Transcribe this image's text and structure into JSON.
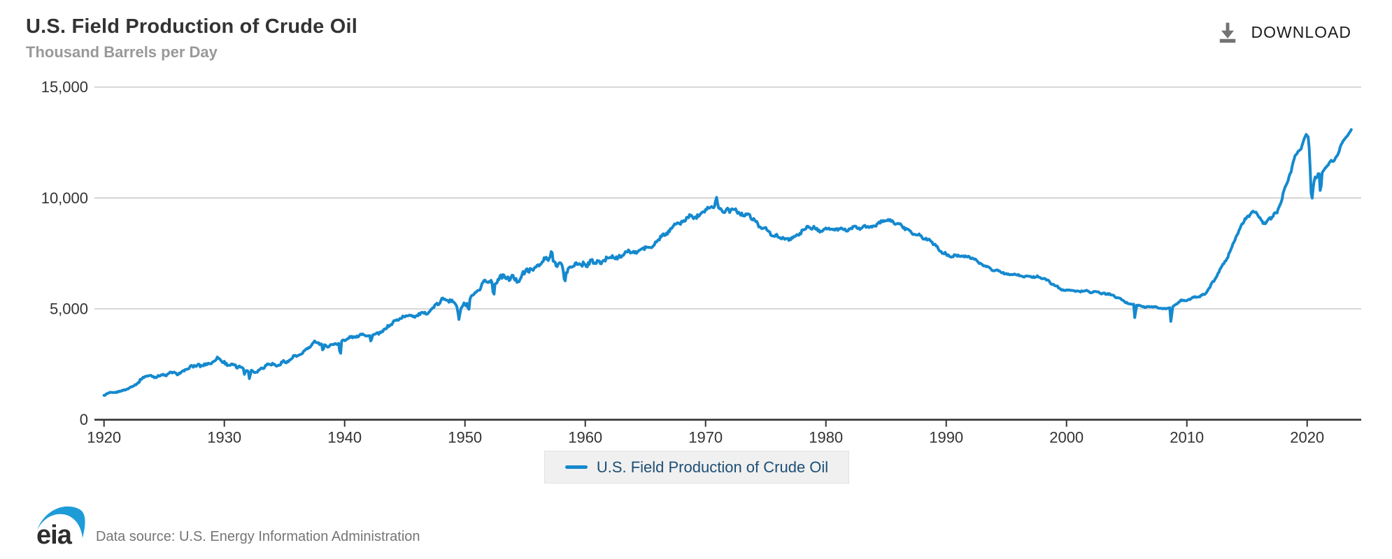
{
  "header": {
    "title": "U.S. Field Production of Crude Oil",
    "subtitle": "Thousand Barrels per Day",
    "download_label": "DOWNLOAD"
  },
  "footer": {
    "logo_text": "eia",
    "source_text": "Data source: U.S. Energy Information Administration"
  },
  "colors": {
    "line": "#1489ce",
    "grid": "#cbcbcb",
    "axis": "#333333",
    "tick_label": "#333333",
    "legend_text": "#1d4e74",
    "legend_bg": "#f0f0f0",
    "title": "#333333",
    "subtitle": "#999999",
    "source_text": "#757575",
    "download_icon": "#737373",
    "logo_swoosh": "#1e9cd7",
    "logo_text": "#2d2d2d"
  },
  "chart_data": {
    "type": "line",
    "title": "U.S. Field Production of Crude Oil",
    "ylabel": "Thousand Barrels per Day",
    "unit": "thousand barrels per day",
    "frequency": "monthly",
    "grid": "horizontal",
    "legend_position": "bottom-center",
    "ylim": [
      0,
      15000
    ],
    "yticks": [
      0,
      5000,
      10000,
      15000
    ],
    "ytick_labels": [
      "0",
      "5,000",
      "10,000",
      "15,000"
    ],
    "xticks": [
      1920,
      1930,
      1940,
      1950,
      1960,
      1970,
      1980,
      1990,
      2000,
      2010,
      2020
    ],
    "x_range": [
      1920.0,
      2023.67
    ],
    "series": [
      {
        "name": "U.S. Field Production of Crude Oil",
        "anchors": [
          [
            1920,
            1100
          ],
          [
            1920.5,
            1210
          ],
          [
            1921.5,
            1294
          ],
          [
            1922.5,
            1529
          ],
          [
            1923.5,
            2004
          ],
          [
            1924.5,
            1952
          ],
          [
            1925.5,
            2092
          ],
          [
            1926.5,
            2113
          ],
          [
            1927.5,
            2469
          ],
          [
            1928.5,
            2458
          ],
          [
            1929.5,
            2760
          ],
          [
            1930.5,
            2460
          ],
          [
            1931.5,
            2332
          ],
          [
            1932.5,
            2145
          ],
          [
            1933.5,
            2481
          ],
          [
            1934.5,
            2480
          ],
          [
            1935.5,
            2730
          ],
          [
            1936.5,
            3001
          ],
          [
            1937.5,
            3500
          ],
          [
            1938.5,
            3327
          ],
          [
            1939.5,
            3467
          ],
          [
            1940.5,
            3697
          ],
          [
            1941.5,
            3842
          ],
          [
            1942.5,
            3799
          ],
          [
            1943.5,
            4125
          ],
          [
            1944.5,
            4584
          ],
          [
            1945.5,
            4695
          ],
          [
            1946.5,
            4750
          ],
          [
            1947.5,
            5088
          ],
          [
            1948.5,
            5520
          ],
          [
            1949.5,
            5046
          ],
          [
            1950.5,
            5407
          ],
          [
            1951.5,
            6158
          ],
          [
            1952.5,
            6256
          ],
          [
            1953.5,
            6458
          ],
          [
            1954.5,
            6342
          ],
          [
            1955.5,
            6807
          ],
          [
            1956.5,
            7151
          ],
          [
            1957.5,
            7170
          ],
          [
            1958.5,
            6710
          ],
          [
            1959.5,
            7054
          ],
          [
            1960.5,
            7035
          ],
          [
            1961.5,
            7183
          ],
          [
            1962.5,
            7332
          ],
          [
            1963.5,
            7542
          ],
          [
            1964.5,
            7614
          ],
          [
            1965.5,
            7804
          ],
          [
            1966.5,
            8295
          ],
          [
            1967.5,
            8810
          ],
          [
            1968.5,
            9096
          ],
          [
            1969.5,
            9238
          ],
          [
            1970.5,
            9637
          ],
          [
            1971.5,
            9463
          ],
          [
            1972.5,
            9441
          ],
          [
            1973.5,
            9208
          ],
          [
            1974.5,
            8774
          ],
          [
            1975.5,
            8375
          ],
          [
            1976.5,
            8132
          ],
          [
            1977.5,
            8245
          ],
          [
            1978.5,
            8707
          ],
          [
            1979.5,
            8552
          ],
          [
            1980.5,
            8597
          ],
          [
            1981.5,
            8572
          ],
          [
            1982.5,
            8649
          ],
          [
            1983.5,
            8688
          ],
          [
            1984.5,
            8879
          ],
          [
            1985.5,
            8971
          ],
          [
            1986.5,
            8680
          ],
          [
            1987.5,
            8349
          ],
          [
            1988.5,
            8140
          ],
          [
            1989.5,
            7613
          ],
          [
            1990.5,
            7355
          ],
          [
            1991.5,
            7417
          ],
          [
            1992.5,
            7171
          ],
          [
            1993.5,
            6847
          ],
          [
            1994.5,
            6662
          ],
          [
            1995.5,
            6560
          ],
          [
            1996.5,
            6465
          ],
          [
            1997.5,
            6452
          ],
          [
            1998.5,
            6252
          ],
          [
            1999.5,
            5881
          ],
          [
            2000.5,
            5822
          ],
          [
            2001.5,
            5801
          ],
          [
            2002.5,
            5746
          ],
          [
            2003.5,
            5681
          ],
          [
            2004.5,
            5419
          ],
          [
            2005.5,
            5178
          ],
          [
            2006.5,
            5102
          ],
          [
            2007.5,
            5064
          ],
          [
            2008.5,
            5000
          ],
          [
            2009.5,
            5353
          ],
          [
            2010.5,
            5482
          ],
          [
            2011.5,
            5645
          ],
          [
            2012.5,
            6497
          ],
          [
            2013.5,
            7468
          ],
          [
            2014.5,
            8759
          ],
          [
            2015.5,
            9431
          ],
          [
            2016.5,
            8831
          ],
          [
            2017.5,
            9352
          ],
          [
            2018.5,
            10964
          ],
          [
            2019,
            11900
          ],
          [
            2019.25,
            12110
          ],
          [
            2019.5,
            12230
          ],
          [
            2019.75,
            12650
          ],
          [
            2019.92,
            12860
          ],
          [
            2020.1,
            12740
          ],
          [
            2020.2,
            12000
          ],
          [
            2020.37,
            9714
          ],
          [
            2020.5,
            10450
          ],
          [
            2020.63,
            10950
          ],
          [
            2020.8,
            10900
          ],
          [
            2020.95,
            11150
          ],
          [
            2021.1,
            11000
          ],
          [
            2021.3,
            11170
          ],
          [
            2021.5,
            11320
          ],
          [
            2021.75,
            11500
          ],
          [
            2021.95,
            11700
          ],
          [
            2022.2,
            11650
          ],
          [
            2022.4,
            11850
          ],
          [
            2022.6,
            12000
          ],
          [
            2022.8,
            12380
          ],
          [
            2023,
            12550
          ],
          [
            2023.2,
            12700
          ],
          [
            2023.4,
            12850
          ],
          [
            2023.67,
            13100
          ]
        ],
        "wiggle_eras": [
          {
            "until": 1924,
            "pct": 3.0
          },
          {
            "until": 1936,
            "pct": 4.0
          },
          {
            "until": 1948,
            "pct": 2.2
          },
          {
            "until": 1963,
            "pct": 3.0
          },
          {
            "until": 1975,
            "pct": 1.5
          },
          {
            "until": 1992,
            "pct": 1.2
          },
          {
            "until": 2012,
            "pct": 1.0
          },
          {
            "until": 2019,
            "pct": 1.1
          },
          {
            "until": 2026,
            "pct": 0.5
          }
        ],
        "events": [
          [
            1931.7,
            1900,
            0.05
          ],
          [
            1932.1,
            1830,
            0.07
          ],
          [
            1938.2,
            3080,
            0.07
          ],
          [
            1939.63,
            2630,
            0.05
          ],
          [
            1942.2,
            3420,
            0.05
          ],
          [
            1949.5,
            4520,
            0.1
          ],
          [
            1950.3,
            4820,
            0.06
          ],
          [
            1952.38,
            5110,
            0.045
          ],
          [
            1957.2,
            7610,
            0.1
          ],
          [
            1958.3,
            6180,
            0.08
          ],
          [
            1970.9,
            10044,
            0.09
          ],
          [
            2005.7,
            4197,
            0.045
          ],
          [
            2008.7,
            3974,
            0.045
          ],
          [
            2021.12,
            9862,
            0.05
          ]
        ]
      }
    ]
  }
}
